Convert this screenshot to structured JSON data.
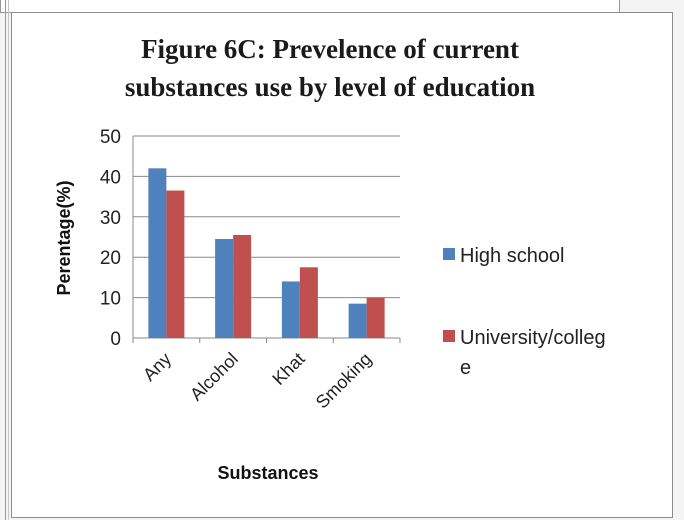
{
  "chart_data": {
    "type": "bar",
    "title_lines": [
      "Figure 6C: Prevelence of current",
      "substances use by level of education"
    ],
    "xlabel": "Substances",
    "ylabel": "Perentage(%)",
    "categories": [
      "Any",
      "Alcohol",
      "Khat",
      "Smoking"
    ],
    "series": [
      {
        "name": "High school",
        "values": [
          42,
          24.5,
          14,
          8.5
        ],
        "color": "#4f81bd"
      },
      {
        "name": "University/college",
        "values": [
          36.5,
          25.5,
          17.5,
          10
        ],
        "color": "#c0504d"
      }
    ],
    "legend_lines": [
      [
        "High school"
      ],
      [
        "University/colleg",
        "e"
      ]
    ],
    "ylim": [
      0,
      50
    ],
    "yticks": [
      0,
      10,
      20,
      30,
      40,
      50
    ],
    "grid": true,
    "legend_position": "right"
  }
}
